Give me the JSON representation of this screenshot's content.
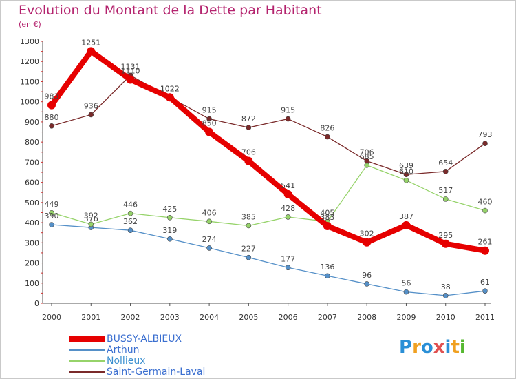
{
  "header": {
    "title": "Evolution du Montant de la Dette par Habitant",
    "subtitle": "(en €)"
  },
  "logo": {
    "letters": [
      "P",
      "r",
      "o",
      "x",
      "i",
      "t",
      "i"
    ],
    "colors": [
      "#2a8fd6",
      "#f0a020",
      "#2a8fd6",
      "#e05050",
      "#2a8fd6",
      "#f0a020",
      "#56b830"
    ]
  },
  "chart_data": {
    "type": "line",
    "title": "Evolution du Montant de la Dette par Habitant",
    "ylabel": "(en €)",
    "xlabel": "",
    "x": [
      "2000",
      "2001",
      "2002",
      "2003",
      "2004",
      "2005",
      "2006",
      "2007",
      "2008",
      "2009",
      "2010",
      "2011"
    ],
    "ylim": [
      0,
      1300
    ],
    "yticks": [
      0,
      100,
      200,
      300,
      400,
      500,
      600,
      700,
      800,
      900,
      1000,
      1100,
      1200,
      1300
    ],
    "grid": false,
    "legend_position": "bottom-left",
    "series": [
      {
        "name": "BUSSY-ALBIEUX",
        "color": "#e60000",
        "values": [
          983,
          1251,
          1110,
          1022,
          850,
          706,
          541,
          383,
          302,
          387,
          295,
          261
        ]
      },
      {
        "name": "Arthun",
        "color": "#5590c8",
        "values": [
          390,
          376,
          362,
          319,
          274,
          227,
          177,
          136,
          96,
          56,
          38,
          61
        ]
      },
      {
        "name": "Nollieux",
        "color": "#96d36a",
        "values": [
          449,
          392,
          446,
          425,
          406,
          385,
          428,
          405,
          685,
          610,
          517,
          460
        ]
      },
      {
        "name": "Saint-Germain-Laval",
        "color": "#7a2a2a",
        "values": [
          880,
          936,
          1131,
          1022,
          915,
          872,
          915,
          826,
          706,
          639,
          654,
          793
        ]
      }
    ]
  }
}
